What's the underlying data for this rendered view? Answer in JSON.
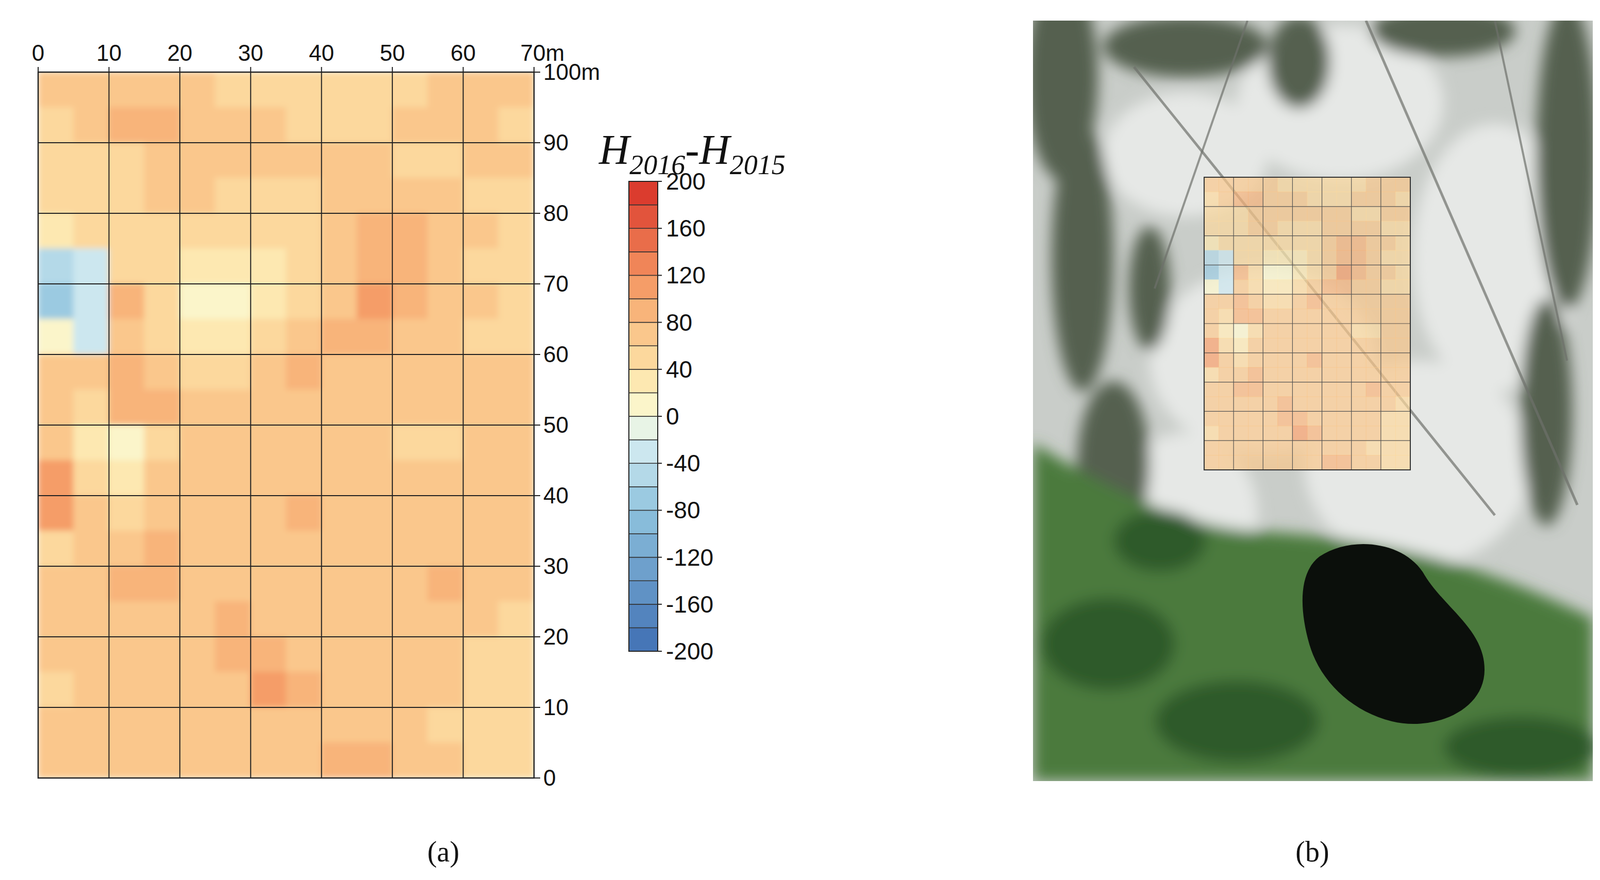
{
  "chart_data": {
    "type": "heatmap",
    "title": "H2016-H2015",
    "panel_label": "(a)",
    "x": [
      2.5,
      7.5,
      12.5,
      17.5,
      22.5,
      27.5,
      32.5,
      37.5,
      42.5,
      47.5,
      52.5,
      57.5,
      62.5,
      67.5
    ],
    "y": [
      97.5,
      92.5,
      87.5,
      82.5,
      77.5,
      72.5,
      67.5,
      62.5,
      57.5,
      52.5,
      47.5,
      42.5,
      37.5,
      32.5,
      27.5,
      22.5,
      17.5,
      12.5,
      7.5,
      2.5
    ],
    "z": [
      [
        60,
        60,
        60,
        70,
        60,
        50,
        50,
        40,
        40,
        50,
        50,
        60,
        60,
        60
      ],
      [
        50,
        60,
        80,
        90,
        60,
        60,
        60,
        50,
        40,
        50,
        60,
        60,
        60,
        50
      ],
      [
        50,
        50,
        50,
        60,
        70,
        60,
        60,
        60,
        60,
        60,
        50,
        50,
        60,
        60
      ],
      [
        40,
        40,
        50,
        60,
        60,
        50,
        50,
        50,
        60,
        60,
        60,
        60,
        50,
        40
      ],
      [
        20,
        40,
        50,
        40,
        40,
        50,
        40,
        40,
        60,
        80,
        80,
        70,
        60,
        50
      ],
      [
        -60,
        -40,
        40,
        40,
        20,
        20,
        30,
        40,
        60,
        90,
        90,
        60,
        50,
        50
      ],
      [
        -80,
        -40,
        90,
        40,
        10,
        10,
        20,
        50,
        70,
        100,
        90,
        70,
        60,
        40
      ],
      [
        0,
        -40,
        60,
        50,
        20,
        20,
        40,
        60,
        80,
        80,
        70,
        60,
        50,
        50
      ],
      [
        60,
        60,
        90,
        70,
        40,
        50,
        70,
        80,
        70,
        60,
        60,
        60,
        60,
        60
      ],
      [
        60,
        50,
        90,
        80,
        60,
        70,
        70,
        60,
        60,
        60,
        60,
        70,
        60,
        60
      ],
      [
        60,
        30,
        10,
        40,
        60,
        70,
        60,
        60,
        60,
        60,
        50,
        50,
        60,
        60
      ],
      [
        100,
        40,
        20,
        60,
        70,
        60,
        60,
        60,
        60,
        60,
        60,
        60,
        60,
        60
      ],
      [
        100,
        70,
        50,
        70,
        70,
        60,
        60,
        80,
        60,
        60,
        60,
        60,
        60,
        60
      ],
      [
        50,
        60,
        70,
        90,
        70,
        60,
        60,
        60,
        60,
        60,
        60,
        70,
        70,
        60
      ],
      [
        60,
        70,
        80,
        90,
        70,
        60,
        60,
        60,
        60,
        70,
        70,
        90,
        60,
        60
      ],
      [
        70,
        60,
        60,
        60,
        60,
        80,
        70,
        60,
        60,
        60,
        60,
        60,
        60,
        50
      ],
      [
        60,
        70,
        70,
        60,
        60,
        80,
        80,
        70,
        60,
        60,
        60,
        60,
        50,
        40
      ],
      [
        50,
        60,
        60,
        60,
        60,
        60,
        100,
        90,
        60,
        60,
        60,
        60,
        50,
        40
      ],
      [
        60,
        60,
        60,
        60,
        60,
        60,
        70,
        70,
        60,
        70,
        60,
        50,
        40,
        50
      ],
      [
        60,
        60,
        60,
        60,
        60,
        60,
        60,
        60,
        90,
        80,
        60,
        60,
        50,
        50
      ]
    ],
    "xlim": [
      0,
      70
    ],
    "ylim": [
      0,
      100
    ],
    "xticks": [
      0,
      10,
      20,
      30,
      40,
      50,
      60,
      {
        "value": 70,
        "label": "70m"
      }
    ],
    "yticks": [
      0,
      10,
      20,
      30,
      40,
      50,
      60,
      70,
      80,
      90,
      {
        "value": 100,
        "label": "100m"
      }
    ],
    "grid": true,
    "colorbar": {
      "range": [
        -200,
        200
      ],
      "ticks": [
        -200,
        -160,
        -120,
        -80,
        -40,
        0,
        40,
        80,
        120,
        160,
        200
      ],
      "levels": [
        -200,
        -180,
        -160,
        -140,
        -120,
        -100,
        -80,
        -60,
        -40,
        -20,
        0,
        20,
        40,
        60,
        80,
        100,
        120,
        140,
        160,
        180,
        200
      ]
    }
  },
  "photo": {
    "panel_label": "(b)"
  }
}
